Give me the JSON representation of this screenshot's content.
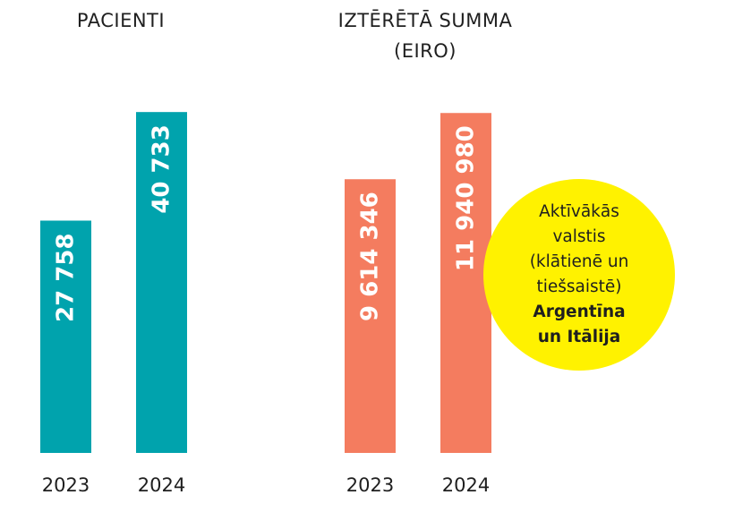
{
  "chart_data": [
    {
      "type": "bar",
      "title": "PACIENTI",
      "categories": [
        "2023",
        "2024"
      ],
      "values": [
        27758,
        40733
      ],
      "value_labels": [
        "27 758",
        "40 733"
      ],
      "color": "#00a3ad",
      "ylim": [
        0,
        41500
      ],
      "grid": false,
      "xlabel": "",
      "ylabel": ""
    },
    {
      "type": "bar",
      "title": "IZTĒRĒTĀ SUMMA\n(EIRO)",
      "title_lines": [
        "IZTĒRĒTĀ SUMMA",
        "(EIRO)"
      ],
      "categories": [
        "2023",
        "2024"
      ],
      "values": [
        9614346,
        11940980
      ],
      "value_labels": [
        "9 614 346",
        "11 940 980"
      ],
      "color": "#f47c5f",
      "ylim": [
        0,
        12200000
      ],
      "grid": false,
      "xlabel": "",
      "ylabel": ""
    }
  ],
  "callout": {
    "lines": [
      "Aktīvākās",
      "valstis",
      "(klātienē un",
      "tiešsaistē)"
    ],
    "bold_lines": [
      "Argentīna",
      "un Itālija"
    ],
    "color": "#fff200"
  }
}
